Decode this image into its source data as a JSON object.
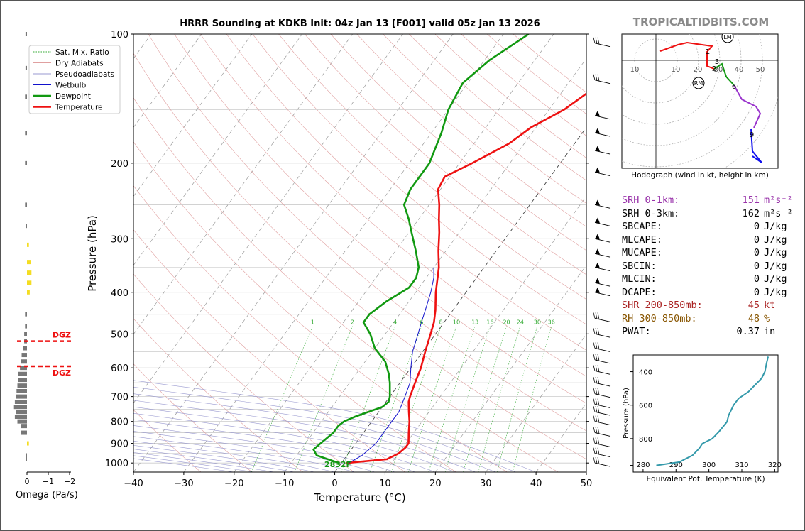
{
  "brand": "TROPICALTIDBITS.COM",
  "title": "HRRR Sounding at KDKB Init: 04z Jan 13 [F001] valid 05z Jan 13 2026",
  "chart_data": {
    "type": "line",
    "title": "HRRR Sounding at KDKB Init: 04z Jan 13 [F001] valid 05z Jan 13 2026",
    "xlabel": "Temperature (°C)",
    "ylabel": "Pressure (hPa)",
    "xlim": [
      -40,
      50
    ],
    "ylim": [
      1050,
      100
    ],
    "y_scale": "log",
    "x_ticks": [
      "−40",
      "−30",
      "−20",
      "−10",
      "0",
      "10",
      "20",
      "30",
      "40",
      "50"
    ],
    "y_ticks": [
      "100",
      "200",
      "300",
      "400",
      "500",
      "600",
      "700",
      "800",
      "900",
      "1000"
    ],
    "legend": [
      "Sat. Mix. Ratio",
      "Dry Adiabats",
      "Pseudoadiabats",
      "Wetbulb",
      "Dewpoint",
      "Temperature"
    ],
    "legend_position": "top-left",
    "mix_ratio_labels": [
      "1",
      "2",
      "4",
      "6",
      "8",
      "10",
      "13",
      "16",
      "20",
      "24",
      "30",
      "36"
    ],
    "surface_label": "2832F",
    "series": [
      {
        "name": "Temperature",
        "color": "#ee1111",
        "points": [
          [
            1000,
            1
          ],
          [
            980,
            8.5
          ],
          [
            950,
            10
          ],
          [
            920,
            10.5
          ],
          [
            900,
            10.5
          ],
          [
            850,
            9
          ],
          [
            800,
            7.5
          ],
          [
            760,
            6
          ],
          [
            720,
            4.5
          ],
          [
            700,
            4
          ],
          [
            650,
            3
          ],
          [
            600,
            2
          ],
          [
            550,
            0.5
          ],
          [
            500,
            -1
          ],
          [
            470,
            -2
          ],
          [
            440,
            -3.5
          ],
          [
            400,
            -6
          ],
          [
            350,
            -9
          ],
          [
            320,
            -11.5
          ],
          [
            290,
            -14
          ],
          [
            270,
            -16
          ],
          [
            250,
            -18
          ],
          [
            230,
            -20.5
          ],
          [
            215,
            -21
          ],
          [
            200,
            -17.5
          ],
          [
            180,
            -13
          ],
          [
            165,
            -11
          ],
          [
            150,
            -7
          ],
          [
            130,
            -3.5
          ],
          [
            115,
            -0.5
          ],
          [
            100,
            3.5
          ]
        ]
      },
      {
        "name": "Dewpoint",
        "color": "#119911",
        "points": [
          [
            1000,
            -0.5
          ],
          [
            960,
            -6
          ],
          [
            930,
            -7.5
          ],
          [
            900,
            -7
          ],
          [
            850,
            -6
          ],
          [
            820,
            -6
          ],
          [
            800,
            -5.5
          ],
          [
            780,
            -4
          ],
          [
            740,
            0
          ],
          [
            720,
            0.5
          ],
          [
            700,
            0
          ],
          [
            650,
            -2
          ],
          [
            620,
            -3.5
          ],
          [
            580,
            -6
          ],
          [
            540,
            -10
          ],
          [
            500,
            -13
          ],
          [
            470,
            -16
          ],
          [
            450,
            -16
          ],
          [
            420,
            -14.5
          ],
          [
            390,
            -12
          ],
          [
            370,
            -12
          ],
          [
            350,
            -13
          ],
          [
            320,
            -16
          ],
          [
            290,
            -19.5
          ],
          [
            270,
            -22
          ],
          [
            250,
            -25
          ],
          [
            230,
            -26
          ],
          [
            200,
            -26
          ],
          [
            170,
            -28
          ],
          [
            150,
            -30
          ],
          [
            130,
            -31
          ],
          [
            115,
            -29
          ],
          [
            100,
            -25
          ]
        ]
      },
      {
        "name": "Wetbulb",
        "color": "#1111cc",
        "points": [
          [
            1000,
            1.5
          ],
          [
            960,
            3
          ],
          [
            930,
            3.5
          ],
          [
            900,
            4
          ],
          [
            850,
            4
          ],
          [
            800,
            4
          ],
          [
            760,
            4
          ],
          [
            700,
            3
          ],
          [
            650,
            2
          ],
          [
            600,
            0
          ],
          [
            550,
            -2
          ],
          [
            500,
            -3.5
          ],
          [
            470,
            -4.5
          ],
          [
            440,
            -5.5
          ],
          [
            400,
            -7
          ],
          [
            370,
            -8.5
          ],
          [
            350,
            -10
          ]
        ]
      }
    ],
    "hodograph": {
      "caption": "Hodograph (wind in kt, height in km)",
      "ring_labels": [
        "10",
        "10",
        "20",
        "30",
        "40",
        "50"
      ],
      "markers": [
        "LM",
        "RM"
      ],
      "height_labels": [
        "1",
        "2",
        "3",
        "6",
        "9"
      ]
    },
    "omega_panel": {
      "xlabel": "Omega (Pa/s)",
      "ticks": [
        "0",
        "−1",
        "−2"
      ],
      "dgz_label": "DGZ",
      "dgz_hpa": [
        520,
        595
      ]
    },
    "theta_e_panel": {
      "xlabel": "Equivalent Pot. Temperature (K)",
      "ylabel": "Pressure (hPa)",
      "x_ticks": [
        "280",
        "290",
        "300",
        "310",
        "320"
      ],
      "y_ticks": [
        "400",
        "600",
        "800"
      ],
      "xlim": [
        277,
        321
      ],
      "points": [
        [
          960,
          284
        ],
        [
          940,
          291
        ],
        [
          900,
          295
        ],
        [
          860,
          297
        ],
        [
          830,
          298
        ],
        [
          800,
          301
        ],
        [
          760,
          303
        ],
        [
          700,
          305.5
        ],
        [
          660,
          306
        ],
        [
          600,
          307.5
        ],
        [
          560,
          309
        ],
        [
          520,
          312
        ],
        [
          480,
          314
        ],
        [
          440,
          316
        ],
        [
          400,
          317
        ],
        [
          350,
          317.5
        ],
        [
          310,
          318
        ]
      ]
    }
  },
  "stats": [
    {
      "label": "SRH 0-1km:",
      "value": "151",
      "unit": "m²s⁻²",
      "color": "#9933aa"
    },
    {
      "label": "SRH 0-3km:",
      "value": "162",
      "unit": "m²s⁻²",
      "color": "#000000"
    },
    {
      "label": "SBCAPE:",
      "value": "0",
      "unit": "J/kg",
      "color": "#000000"
    },
    {
      "label": "MLCAPE:",
      "value": "0",
      "unit": "J/kg",
      "color": "#000000"
    },
    {
      "label": "MUCAPE:",
      "value": "0",
      "unit": "J/kg",
      "color": "#000000"
    },
    {
      "label": "SBCIN:",
      "value": "0",
      "unit": "J/kg",
      "color": "#000000"
    },
    {
      "label": "MLCIN:",
      "value": "0",
      "unit": "J/kg",
      "color": "#000000"
    },
    {
      "label": "DCAPE:",
      "value": "0",
      "unit": "J/kg",
      "color": "#000000"
    },
    {
      "label": "SHR 200-850mb:",
      "value": "45",
      "unit": "kt",
      "color": "#aa2222"
    },
    {
      "label": "RH 300-850mb:",
      "value": "48",
      "unit": "%",
      "color": "#885500"
    },
    {
      "label": "PWAT:",
      "value": "0.37",
      "unit": "in",
      "color": "#000000"
    }
  ]
}
